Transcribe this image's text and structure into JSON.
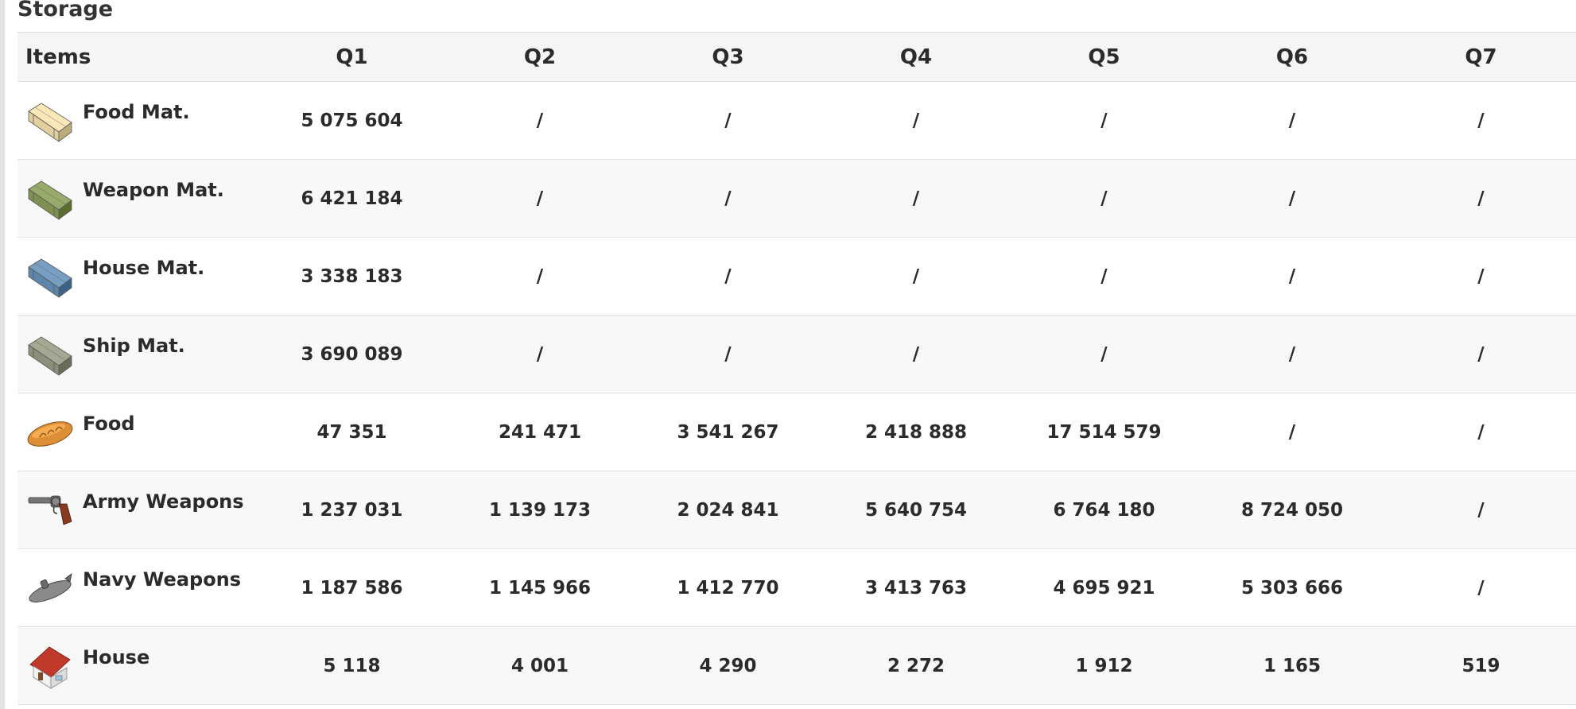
{
  "section": {
    "title": "Storage"
  },
  "table": {
    "headers": [
      "Items",
      "Q1",
      "Q2",
      "Q3",
      "Q4",
      "Q5",
      "Q6",
      "Q7"
    ],
    "rows": [
      {
        "icon": "food-materials-crate-icon",
        "name": "Food Mat.",
        "values": [
          "5 075 604",
          "/",
          "/",
          "/",
          "/",
          "/",
          "/"
        ]
      },
      {
        "icon": "weapon-materials-crate-icon",
        "name": "Weapon Mat.",
        "values": [
          "6 421 184",
          "/",
          "/",
          "/",
          "/",
          "/",
          "/"
        ]
      },
      {
        "icon": "house-materials-crate-icon",
        "name": "House Mat.",
        "values": [
          "3 338 183",
          "/",
          "/",
          "/",
          "/",
          "/",
          "/"
        ]
      },
      {
        "icon": "ship-materials-crate-icon",
        "name": "Ship Mat.",
        "values": [
          "3 690 089",
          "/",
          "/",
          "/",
          "/",
          "/",
          "/"
        ]
      },
      {
        "icon": "bread-icon",
        "name": "Food",
        "values": [
          "47 351",
          "241 471",
          "3 541 267",
          "2 418 888",
          "17 514 579",
          "/",
          "/"
        ]
      },
      {
        "icon": "revolver-icon",
        "name": "Army Weapons",
        "values": [
          "1 237 031",
          "1 139 173",
          "2 024 841",
          "5 640 754",
          "6 764 180",
          "8 724 050",
          "/"
        ]
      },
      {
        "icon": "submarine-icon",
        "name": "Navy Weapons",
        "values": [
          "1 187 586",
          "1 145 966",
          "1 412 770",
          "3 413 763",
          "4 695 921",
          "5 303 666",
          "/"
        ]
      },
      {
        "icon": "house-icon",
        "name": "House",
        "values": [
          "5 118",
          "4 001",
          "4 290",
          "2 272",
          "1 912",
          "1 165",
          "519"
        ]
      }
    ]
  },
  "colors": {
    "food_crate": "#e2cfa0",
    "weapon_crate": "#7f9150",
    "house_crate": "#5d86aa",
    "ship_crate": "#8d8f7a",
    "bread": "#dc8f36",
    "house_roof": "#c0392b"
  }
}
